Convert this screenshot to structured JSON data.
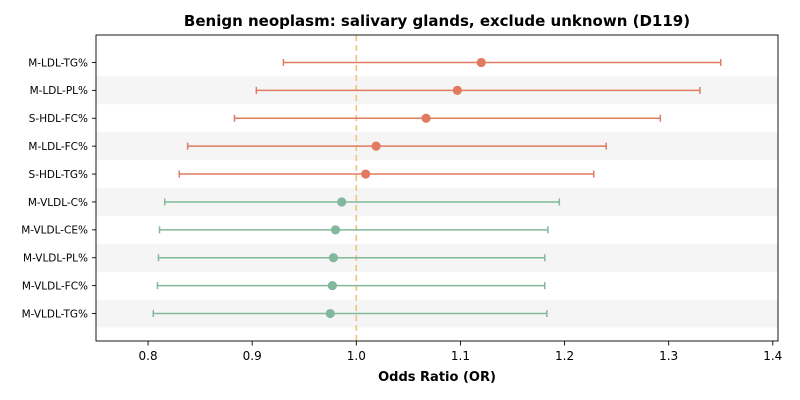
{
  "chart_data": {
    "type": "forest",
    "title": "Benign neoplasm: salivary glands, exclude unknown (D119)",
    "xlabel": "Odds Ratio (OR)",
    "xlim": [
      0.75,
      1.405
    ],
    "xticks": [
      0.8,
      0.9,
      1.0,
      1.1,
      1.2,
      1.3,
      1.4
    ],
    "xtick_labels": [
      "0.8",
      "0.9",
      "1.0",
      "1.1",
      "1.2",
      "1.3",
      "1.4"
    ],
    "reference_line": 1.0,
    "grid": false,
    "row_shading": "alternating",
    "colors": {
      "positive": "#e07b5f",
      "negative": "#82b89c",
      "reference": "#f5c07a",
      "band": "#f5f5f5"
    },
    "rows": [
      {
        "label": "M-LDL-TG%",
        "or": 1.12,
        "lo": 0.93,
        "hi": 1.35,
        "group": "positive"
      },
      {
        "label": "M-LDL-PL%",
        "or": 1.097,
        "lo": 0.904,
        "hi": 1.33,
        "group": "positive"
      },
      {
        "label": "S-HDL-FC%",
        "or": 1.067,
        "lo": 0.883,
        "hi": 1.292,
        "group": "positive"
      },
      {
        "label": "M-LDL-FC%",
        "or": 1.019,
        "lo": 0.838,
        "hi": 1.24,
        "group": "positive"
      },
      {
        "label": "S-HDL-TG%",
        "or": 1.009,
        "lo": 0.83,
        "hi": 1.228,
        "group": "positive"
      },
      {
        "label": "M-VLDL-C%",
        "or": 0.986,
        "lo": 0.816,
        "hi": 1.195,
        "group": "negative"
      },
      {
        "label": "M-VLDL-CE%",
        "or": 0.98,
        "lo": 0.811,
        "hi": 1.184,
        "group": "negative"
      },
      {
        "label": "M-VLDL-PL%",
        "or": 0.978,
        "lo": 0.81,
        "hi": 1.181,
        "group": "negative"
      },
      {
        "label": "M-VLDL-FC%",
        "or": 0.977,
        "lo": 0.809,
        "hi": 1.181,
        "group": "negative"
      },
      {
        "label": "M-VLDL-TG%",
        "or": 0.975,
        "lo": 0.805,
        "hi": 1.183,
        "group": "negative"
      }
    ]
  }
}
